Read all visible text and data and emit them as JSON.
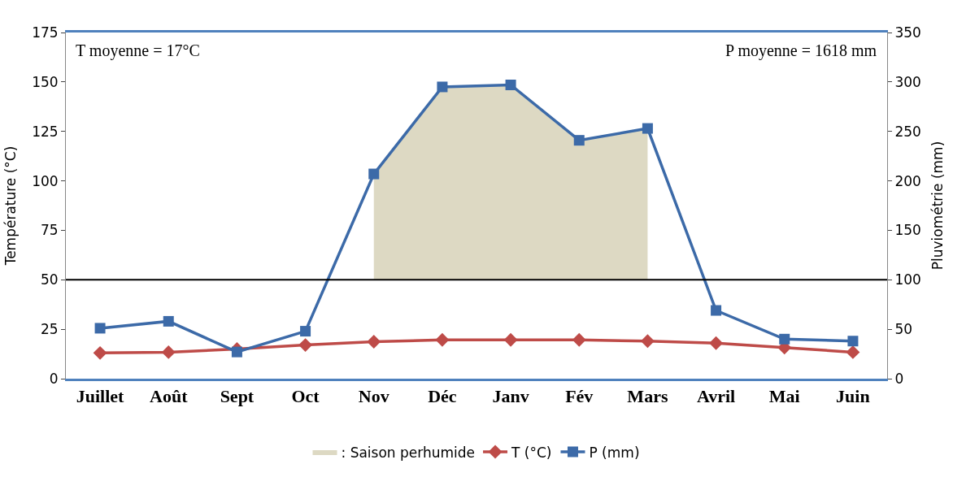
{
  "chart_data": {
    "type": "line",
    "categories": [
      "Juillet",
      "Août",
      "Sept",
      "Oct",
      "Nov",
      "Déc",
      "Janv",
      "Fév",
      "Mars",
      "Avril",
      "Mai",
      "Juin"
    ],
    "ylabel": "Température (°C)",
    "y2label": "Pluviométrie (mm)",
    "ylim": [
      0,
      175
    ],
    "yticks": [
      0,
      25,
      50,
      75,
      100,
      125,
      150,
      175
    ],
    "y2lim": [
      0,
      350
    ],
    "y2ticks": [
      0,
      50,
      100,
      150,
      200,
      250,
      300,
      350
    ],
    "series": [
      {
        "name": "T (°C)",
        "color": "#be4b48",
        "marker": "diamond",
        "values": [
          13,
          13.4,
          15,
          17,
          18.7,
          19.6,
          19.6,
          19.6,
          19,
          18,
          15.7,
          13.4
        ]
      },
      {
        "name": "P (mm)",
        "axis": "y2",
        "color": "#3c6aa8",
        "marker": "square",
        "values": [
          51,
          58,
          27,
          48,
          207,
          295,
          297,
          241,
          253,
          69,
          40,
          38
        ]
      },
      {
        "name": ": Saison perhumide",
        "type": "area",
        "axis": "y2",
        "color": "#ddd9c3",
        "values": [
          null,
          null,
          null,
          null,
          207,
          295,
          297,
          241,
          253,
          null,
          null,
          null
        ]
      }
    ],
    "ref_lines": [
      {
        "axis": "y2",
        "value": 100,
        "color": "#000000"
      }
    ],
    "annotations": [
      "T moyenne = 17°C",
      "P moyenne = 1618 mm"
    ],
    "legend": "bottom"
  }
}
